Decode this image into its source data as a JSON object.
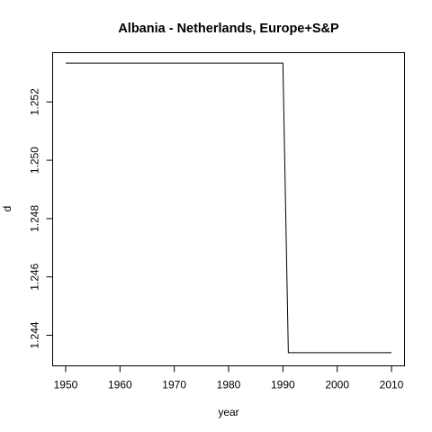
{
  "chart_data": {
    "type": "line",
    "title": "Albania - Netherlands, Europe+S&P",
    "xlabel": "year",
    "ylabel": "d",
    "xlim": [
      1947.6,
      2012.4
    ],
    "ylim": [
      1.24295,
      1.25369
    ],
    "xticks": [
      1950,
      1960,
      1970,
      1980,
      1990,
      2000,
      2010
    ],
    "xtick_labels": [
      "1950",
      "1960",
      "1970",
      "1980",
      "1990",
      "2000",
      "2010"
    ],
    "yticks": [
      1.244,
      1.246,
      1.248,
      1.25,
      1.252
    ],
    "ytick_labels": [
      "1.244",
      "1.246",
      "1.248",
      "1.250",
      "1.252"
    ],
    "grid": false,
    "series": [
      {
        "x": [
          1950,
          1990,
          1991,
          2010
        ],
        "y": [
          1.25333,
          1.25333,
          1.2434,
          1.2434
        ],
        "color": "#000000"
      }
    ]
  }
}
